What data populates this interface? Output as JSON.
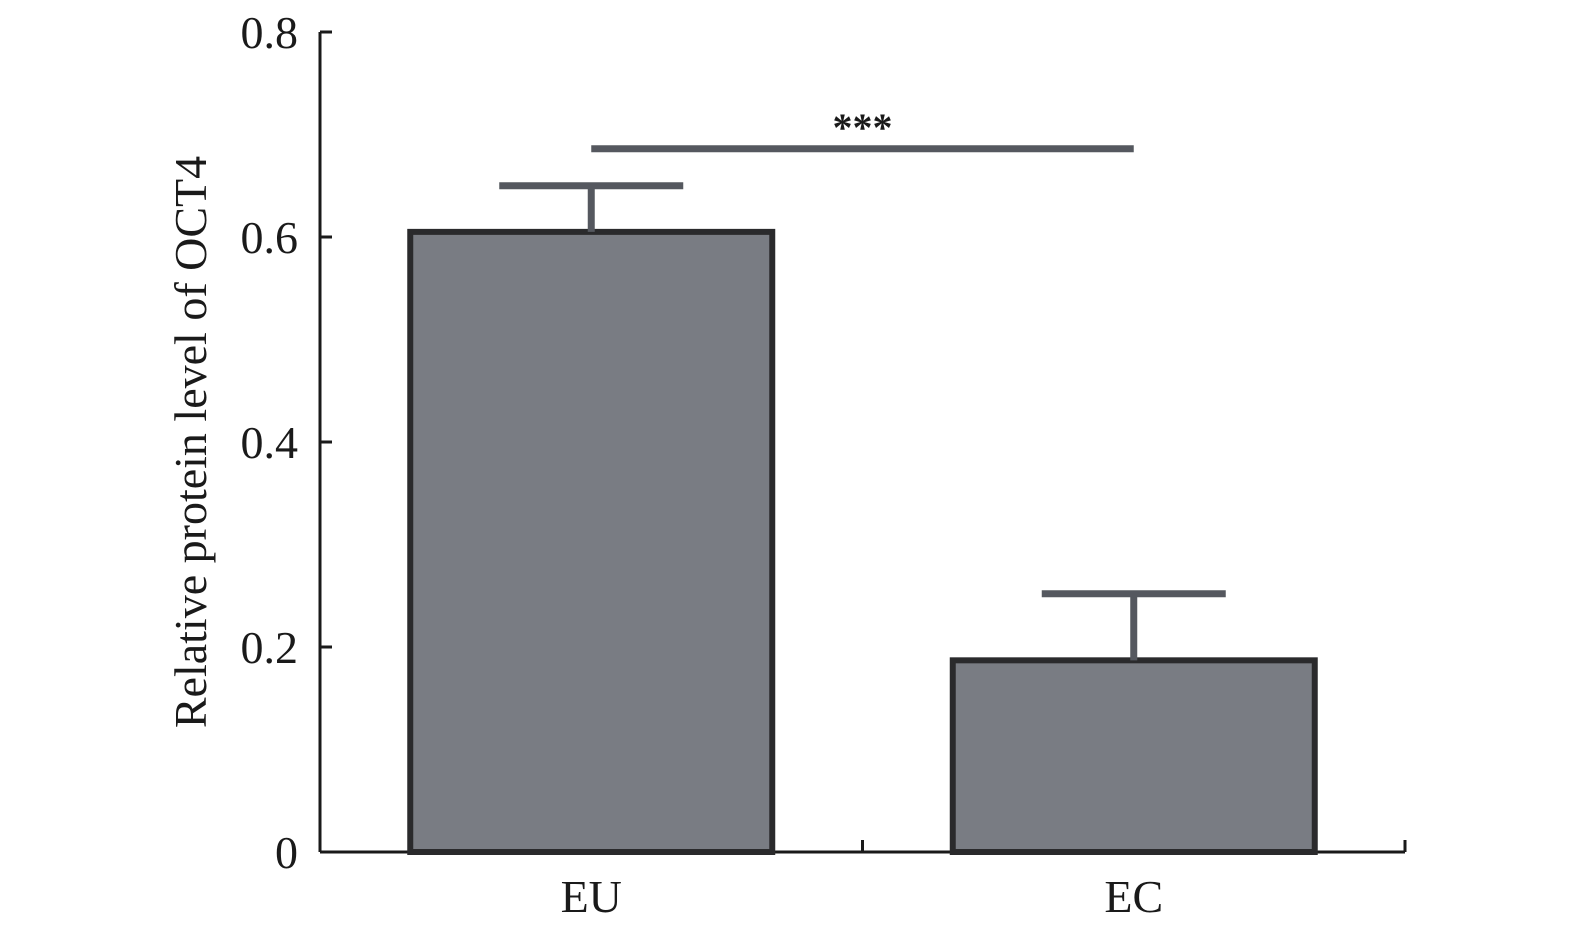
{
  "chart_data": {
    "type": "bar",
    "categories": [
      "EU",
      "EC"
    ],
    "values": [
      0.605,
      0.187
    ],
    "errors": [
      0.045,
      0.065
    ],
    "ylabel": "Relative protein level of OCT4",
    "xlabel": "",
    "ylim": [
      0,
      0.8
    ],
    "yticks": [
      "0",
      "0.2",
      "0.4",
      "0.6",
      "0.8"
    ],
    "grid": false,
    "significance": {
      "between": [
        "EU",
        "EC"
      ],
      "label": "***"
    },
    "colors": {
      "bar_fill": "#797c83",
      "bar_edge": "#2a2a2c",
      "error_bar": "#55585f",
      "axis": "#1a1a1a"
    }
  }
}
